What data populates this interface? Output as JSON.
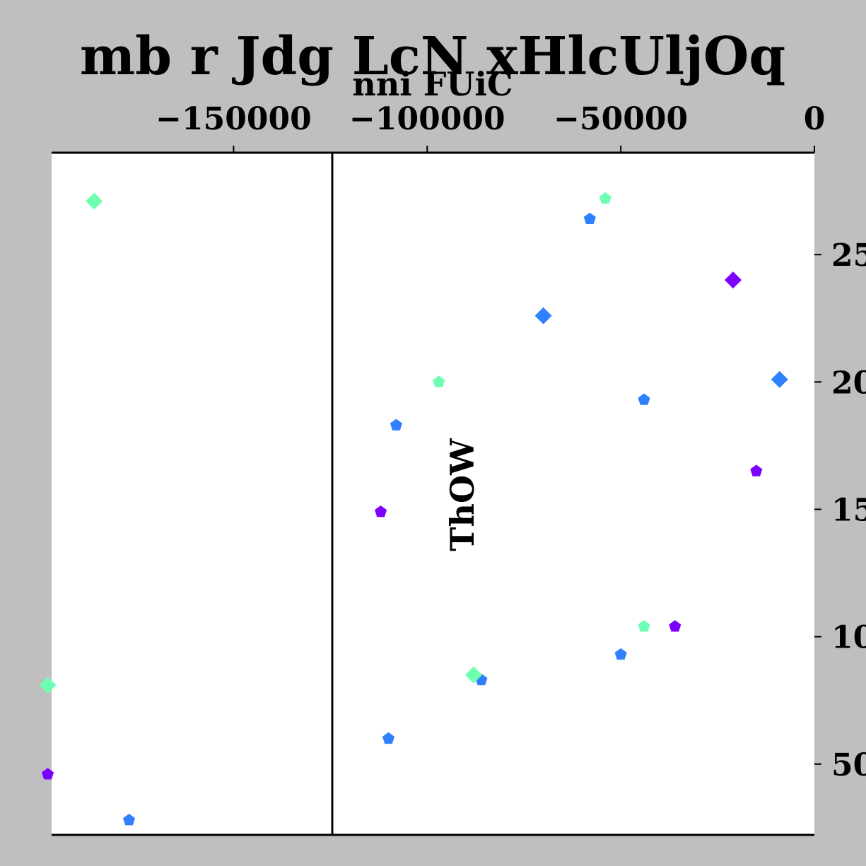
{
  "chart_data": {
    "type": "scatter",
    "title": "mb r Jdg LcN xHlcUljOq",
    "xlabel": "nni FUiC",
    "ylabel": "ThOW",
    "xlim": [
      -197000,
      0
    ],
    "ylim": [
      222,
      2900
    ],
    "x_ticks": [
      -150000,
      -100000,
      -50000,
      0
    ],
    "x_tick_labels": [
      "−150000",
      "−100000",
      "−50000",
      "0"
    ],
    "y_ticks": [
      500,
      1000,
      1500,
      2000,
      2500
    ],
    "y_tick_labels": [
      "500",
      "1000",
      "1500",
      "2000",
      "2500"
    ],
    "x_axis_position": "top",
    "y_axis_at_x": 0,
    "grid": false,
    "legend": "none",
    "series": [
      {
        "color": "#7b00ff",
        "points": [
          {
            "x": -198000,
            "y": 460,
            "marker": "pentagon"
          },
          {
            "x": -112000,
            "y": 1490,
            "marker": "pentagon"
          },
          {
            "x": -36000,
            "y": 1040,
            "marker": "pentagon"
          },
          {
            "x": -21000,
            "y": 2400,
            "marker": "diamond"
          },
          {
            "x": -15000,
            "y": 1650,
            "marker": "pentagon"
          }
        ]
      },
      {
        "color": "#2f80ff",
        "points": [
          {
            "x": -177000,
            "y": 280,
            "marker": "pentagon"
          },
          {
            "x": -110000,
            "y": 600,
            "marker": "pentagon"
          },
          {
            "x": -108000,
            "y": 1830,
            "marker": "pentagon"
          },
          {
            "x": -86000,
            "y": 830,
            "marker": "pentagon"
          },
          {
            "x": -70000,
            "y": 2260,
            "marker": "diamond"
          },
          {
            "x": -58000,
            "y": 2640,
            "marker": "pentagon"
          },
          {
            "x": -50000,
            "y": 930,
            "marker": "pentagon"
          },
          {
            "x": -44000,
            "y": 1930,
            "marker": "pentagon"
          },
          {
            "x": -9000,
            "y": 2010,
            "marker": "diamond"
          }
        ]
      },
      {
        "color": "#6effb0",
        "points": [
          {
            "x": -198000,
            "y": 810,
            "marker": "diamond"
          },
          {
            "x": -186000,
            "y": 2710,
            "marker": "diamond"
          },
          {
            "x": -97000,
            "y": 2000,
            "marker": "pentagon"
          },
          {
            "x": -88000,
            "y": 850,
            "marker": "diamond"
          },
          {
            "x": -54000,
            "y": 2720,
            "marker": "pentagon"
          },
          {
            "x": -44000,
            "y": 1040,
            "marker": "pentagon"
          }
        ]
      }
    ]
  }
}
